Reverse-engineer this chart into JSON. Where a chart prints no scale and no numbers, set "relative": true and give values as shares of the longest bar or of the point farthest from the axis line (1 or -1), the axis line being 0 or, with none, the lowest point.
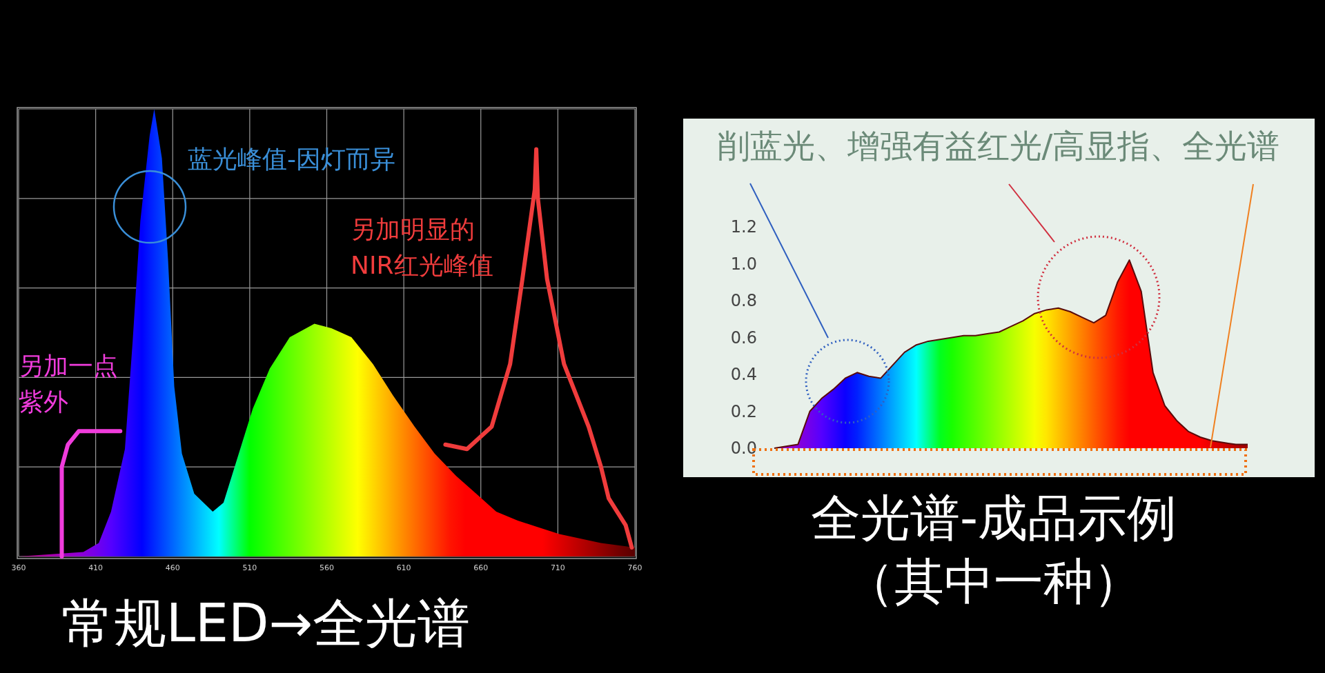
{
  "chart_data": [
    {
      "type": "area",
      "title": "常规LED→全光谱",
      "relative": true,
      "tick_labels": "x",
      "grid": true,
      "xlim": [
        360,
        760
      ],
      "xticks": [
        360,
        410,
        460,
        510,
        560,
        610,
        660,
        710,
        760
      ],
      "series": [
        {
          "type": "area",
          "x": [
            360,
            402,
            412,
            420,
            429,
            434,
            439,
            445,
            448,
            453,
            457,
            461,
            466,
            474,
            486,
            493,
            502,
            512,
            523,
            536,
            552,
            563,
            576,
            590,
            603,
            617,
            630,
            644,
            657,
            670,
            684,
            711,
            738,
            760
          ],
          "values": [
            0,
            0.01,
            0.03,
            0.1,
            0.24,
            0.48,
            0.75,
            0.94,
            1.0,
            0.89,
            0.66,
            0.38,
            0.23,
            0.14,
            0.1,
            0.12,
            0.22,
            0.33,
            0.42,
            0.49,
            0.52,
            0.51,
            0.49,
            0.43,
            0.36,
            0.29,
            0.23,
            0.18,
            0.14,
            0.1,
            0.08,
            0.05,
            0.03,
            0.02
          ]
        },
        {
          "type": "line",
          "color": "#f03c3c",
          "x": [
            637,
            651,
            667,
            679,
            687,
            695,
            696,
            697,
            703,
            714,
            730,
            738,
            743,
            754,
            758
          ],
          "values": [
            0.25,
            0.24,
            0.29,
            0.43,
            0.62,
            0.82,
            0.91,
            0.8,
            0.62,
            0.43,
            0.29,
            0.2,
            0.13,
            0.07,
            0.02
          ]
        },
        {
          "type": "line",
          "color": "#f03cdc",
          "x": [
            388,
            388,
            392,
            399,
            426
          ],
          "values": [
            0,
            0.2,
            0.25,
            0.28,
            0.28
          ]
        }
      ],
      "annotations": [
        "蓝光峰值-因灯而异",
        "另加明显的\nNIR红光峰值",
        "另加一点紫外"
      ]
    },
    {
      "type": "area",
      "title": "削蓝光、增强有益红光/高显指、全光谱",
      "tick_labels": "y",
      "color": "#5a0a0a",
      "ylim": [
        0,
        1.2
      ],
      "yticks": [
        {
          "value": 0,
          "label": "0.0"
        },
        0.2,
        0.4,
        0.6,
        0.8,
        {
          "value": 1,
          "label": "1.0"
        },
        1.2
      ],
      "categories": [
        null,
        null,
        null,
        null,
        null,
        null,
        null,
        null,
        null,
        null,
        null,
        null,
        null,
        null,
        null,
        null,
        null,
        null,
        null,
        null,
        null,
        null,
        null,
        null,
        null,
        null,
        null,
        null,
        null,
        null,
        null,
        null,
        null,
        null,
        null,
        null,
        null,
        null,
        null,
        null,
        null
      ],
      "values": [
        0,
        0.01,
        0.02,
        0.2,
        0.27,
        0.32,
        0.38,
        0.41,
        0.39,
        0.38,
        0.45,
        0.52,
        0.56,
        0.58,
        0.59,
        0.6,
        0.61,
        0.61,
        0.62,
        0.63,
        0.66,
        0.69,
        0.73,
        0.75,
        0.76,
        0.74,
        0.71,
        0.68,
        0.72,
        0.9,
        1.02,
        0.85,
        0.41,
        0.23,
        0.15,
        0.09,
        0.06,
        0.04,
        0.03,
        0.02,
        0.02
      ],
      "annotations": [
        "全光谱-成品示例（其中一种）"
      ]
    }
  ]
}
